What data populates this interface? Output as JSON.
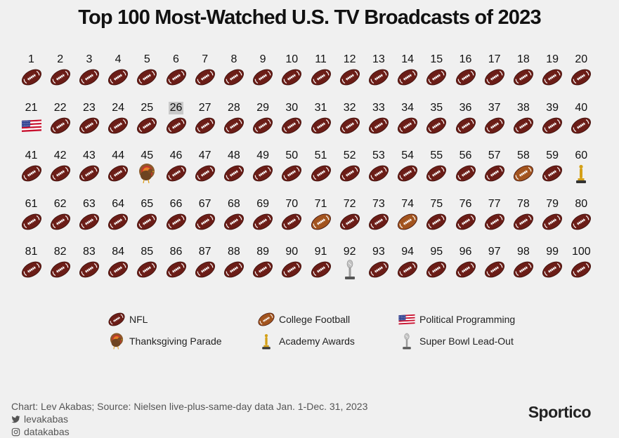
{
  "title": "Top 100 Most-Watched U.S. TV Broadcasts of 2023",
  "chart_data": {
    "type": "icon-grid",
    "title": "Top 100 Most-Watched U.S. TV Broadcasts of 2023",
    "highlighted_rank": 26,
    "categories": {
      "nfl": "NFL",
      "college": "College Football",
      "political": "Political Programming",
      "parade": "Thanksgiving Parade",
      "oscars": "Academy Awards",
      "superbowl": "Super Bowl Lead-Out"
    },
    "ranks": [
      {
        "rank": 1,
        "category": "nfl"
      },
      {
        "rank": 2,
        "category": "nfl"
      },
      {
        "rank": 3,
        "category": "nfl"
      },
      {
        "rank": 4,
        "category": "nfl"
      },
      {
        "rank": 5,
        "category": "nfl"
      },
      {
        "rank": 6,
        "category": "nfl"
      },
      {
        "rank": 7,
        "category": "nfl"
      },
      {
        "rank": 8,
        "category": "nfl"
      },
      {
        "rank": 9,
        "category": "nfl"
      },
      {
        "rank": 10,
        "category": "nfl"
      },
      {
        "rank": 11,
        "category": "nfl"
      },
      {
        "rank": 12,
        "category": "nfl"
      },
      {
        "rank": 13,
        "category": "nfl"
      },
      {
        "rank": 14,
        "category": "nfl"
      },
      {
        "rank": 15,
        "category": "nfl"
      },
      {
        "rank": 16,
        "category": "nfl"
      },
      {
        "rank": 17,
        "category": "nfl"
      },
      {
        "rank": 18,
        "category": "nfl"
      },
      {
        "rank": 19,
        "category": "nfl"
      },
      {
        "rank": 20,
        "category": "nfl"
      },
      {
        "rank": 21,
        "category": "political"
      },
      {
        "rank": 22,
        "category": "nfl"
      },
      {
        "rank": 23,
        "category": "nfl"
      },
      {
        "rank": 24,
        "category": "nfl"
      },
      {
        "rank": 25,
        "category": "nfl"
      },
      {
        "rank": 26,
        "category": "nfl"
      },
      {
        "rank": 27,
        "category": "nfl"
      },
      {
        "rank": 28,
        "category": "nfl"
      },
      {
        "rank": 29,
        "category": "nfl"
      },
      {
        "rank": 30,
        "category": "nfl"
      },
      {
        "rank": 31,
        "category": "nfl"
      },
      {
        "rank": 32,
        "category": "nfl"
      },
      {
        "rank": 33,
        "category": "nfl"
      },
      {
        "rank": 34,
        "category": "nfl"
      },
      {
        "rank": 35,
        "category": "nfl"
      },
      {
        "rank": 36,
        "category": "nfl"
      },
      {
        "rank": 37,
        "category": "nfl"
      },
      {
        "rank": 38,
        "category": "nfl"
      },
      {
        "rank": 39,
        "category": "nfl"
      },
      {
        "rank": 40,
        "category": "nfl"
      },
      {
        "rank": 41,
        "category": "nfl"
      },
      {
        "rank": 42,
        "category": "nfl"
      },
      {
        "rank": 43,
        "category": "nfl"
      },
      {
        "rank": 44,
        "category": "nfl"
      },
      {
        "rank": 45,
        "category": "parade"
      },
      {
        "rank": 46,
        "category": "nfl"
      },
      {
        "rank": 47,
        "category": "nfl"
      },
      {
        "rank": 48,
        "category": "nfl"
      },
      {
        "rank": 49,
        "category": "nfl"
      },
      {
        "rank": 50,
        "category": "nfl"
      },
      {
        "rank": 51,
        "category": "nfl"
      },
      {
        "rank": 52,
        "category": "nfl"
      },
      {
        "rank": 53,
        "category": "nfl"
      },
      {
        "rank": 54,
        "category": "nfl"
      },
      {
        "rank": 55,
        "category": "nfl"
      },
      {
        "rank": 56,
        "category": "nfl"
      },
      {
        "rank": 57,
        "category": "nfl"
      },
      {
        "rank": 58,
        "category": "college"
      },
      {
        "rank": 59,
        "category": "nfl"
      },
      {
        "rank": 60,
        "category": "oscars"
      },
      {
        "rank": 61,
        "category": "nfl"
      },
      {
        "rank": 62,
        "category": "nfl"
      },
      {
        "rank": 63,
        "category": "nfl"
      },
      {
        "rank": 64,
        "category": "nfl"
      },
      {
        "rank": 65,
        "category": "nfl"
      },
      {
        "rank": 66,
        "category": "nfl"
      },
      {
        "rank": 67,
        "category": "nfl"
      },
      {
        "rank": 68,
        "category": "nfl"
      },
      {
        "rank": 69,
        "category": "nfl"
      },
      {
        "rank": 70,
        "category": "nfl"
      },
      {
        "rank": 71,
        "category": "college"
      },
      {
        "rank": 72,
        "category": "nfl"
      },
      {
        "rank": 73,
        "category": "nfl"
      },
      {
        "rank": 74,
        "category": "college"
      },
      {
        "rank": 75,
        "category": "nfl"
      },
      {
        "rank": 76,
        "category": "nfl"
      },
      {
        "rank": 77,
        "category": "nfl"
      },
      {
        "rank": 78,
        "category": "nfl"
      },
      {
        "rank": 79,
        "category": "nfl"
      },
      {
        "rank": 80,
        "category": "nfl"
      },
      {
        "rank": 81,
        "category": "nfl"
      },
      {
        "rank": 82,
        "category": "nfl"
      },
      {
        "rank": 83,
        "category": "nfl"
      },
      {
        "rank": 84,
        "category": "nfl"
      },
      {
        "rank": 85,
        "category": "nfl"
      },
      {
        "rank": 86,
        "category": "nfl"
      },
      {
        "rank": 87,
        "category": "nfl"
      },
      {
        "rank": 88,
        "category": "nfl"
      },
      {
        "rank": 89,
        "category": "nfl"
      },
      {
        "rank": 90,
        "category": "nfl"
      },
      {
        "rank": 91,
        "category": "nfl"
      },
      {
        "rank": 92,
        "category": "superbowl"
      },
      {
        "rank": 93,
        "category": "nfl"
      },
      {
        "rank": 94,
        "category": "nfl"
      },
      {
        "rank": 95,
        "category": "nfl"
      },
      {
        "rank": 96,
        "category": "nfl"
      },
      {
        "rank": 97,
        "category": "nfl"
      },
      {
        "rank": 98,
        "category": "nfl"
      },
      {
        "rank": 99,
        "category": "nfl"
      },
      {
        "rank": 100,
        "category": "nfl"
      }
    ]
  },
  "legend": [
    {
      "key": "nfl",
      "label": "NFL"
    },
    {
      "key": "college",
      "label": "College Football"
    },
    {
      "key": "political",
      "label": "Political Programming"
    },
    {
      "key": "parade",
      "label": "Thanksgiving Parade"
    },
    {
      "key": "oscars",
      "label": "Academy Awards"
    },
    {
      "key": "superbowl",
      "label": "Super Bowl Lead-Out"
    }
  ],
  "colors": {
    "nfl_ball": "#6b1d17",
    "college_ball": "#a2541e",
    "gold": "#d4a017",
    "silver": "#9a9a9a",
    "highlight": "#c9c9c9"
  },
  "footer": {
    "source": "Chart: Lev Akabas; Source: Nielsen live-plus-same-day data Jan. 1-Dec. 31, 2023",
    "twitter": "levakabas",
    "instagram": "datakabas",
    "brand": "Sportico"
  }
}
